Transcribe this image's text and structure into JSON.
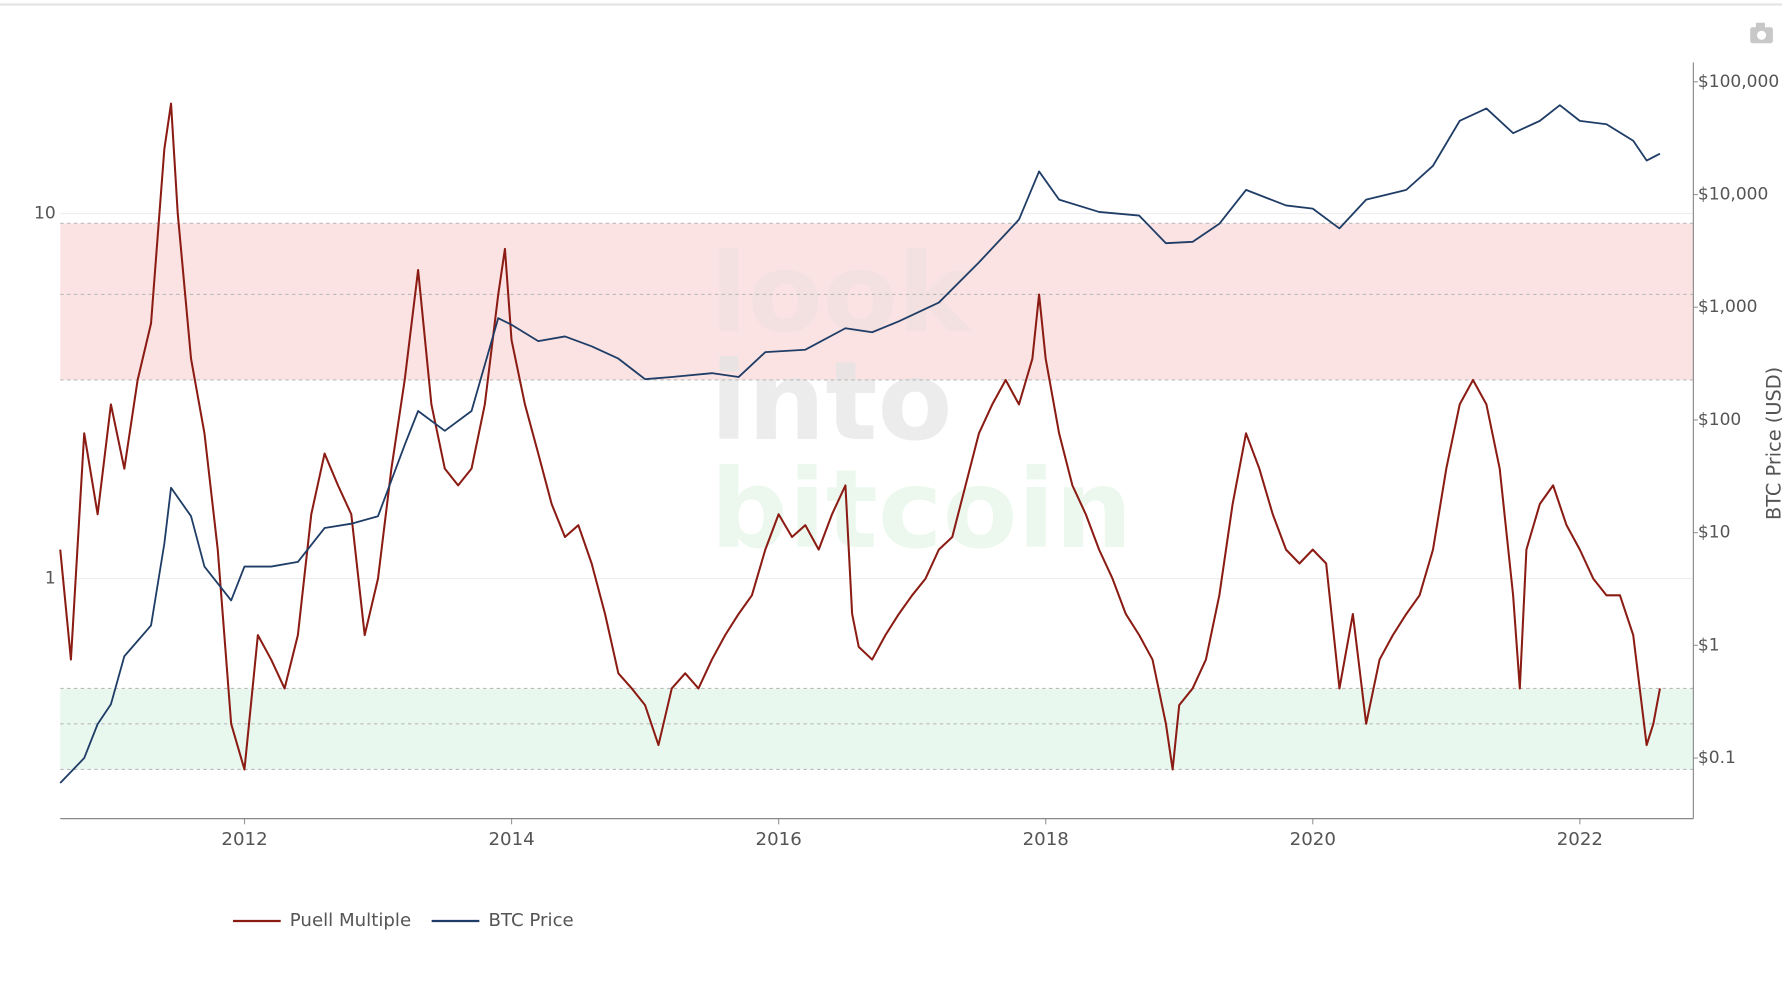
{
  "chart_data": {
    "type": "line",
    "y2label": "BTC Price (USD)",
    "watermark": [
      "look",
      "into",
      "bitcoin"
    ],
    "xlim": [
      2010.62,
      2022.85
    ],
    "xticks": [
      2012,
      2014,
      2016,
      2018,
      2020,
      2022
    ],
    "log_y": true,
    "ylim": [
      0.22,
      25
    ],
    "yticks": [
      1,
      10
    ],
    "log_y2": true,
    "y2lim": [
      0.029,
      132000
    ],
    "y2ticks": [
      {
        "value": 0.1,
        "label": "$0.1"
      },
      {
        "value": 1,
        "label": "$1"
      },
      {
        "value": 10,
        "label": "$10"
      },
      {
        "value": 100,
        "label": "$100"
      },
      {
        "value": 1000,
        "label": "$1,000"
      },
      {
        "value": 10000,
        "label": "$10,000"
      },
      {
        "value": 100000,
        "label": "$100,000"
      }
    ],
    "grid": true,
    "bands": [
      {
        "from": 3.5,
        "to": 9.4,
        "color": "#fbe3e3"
      },
      {
        "from": 0.3,
        "to": 0.5,
        "color": "#e9f8ef"
      }
    ],
    "band_lines": [
      0.3,
      0.4,
      0.5,
      3.5,
      6,
      9.4
    ],
    "legend": "bottom-left",
    "series": [
      {
        "name": "Puell Multiple",
        "color": "#8b1c14",
        "axis": "y",
        "x": [
          2010.62,
          2010.7,
          2010.8,
          2010.9,
          2011.0,
          2011.1,
          2011.2,
          2011.3,
          2011.4,
          2011.45,
          2011.5,
          2011.6,
          2011.7,
          2011.8,
          2011.9,
          2012.0,
          2012.1,
          2012.2,
          2012.3,
          2012.4,
          2012.5,
          2012.6,
          2012.7,
          2012.8,
          2012.9,
          2013.0,
          2013.1,
          2013.2,
          2013.3,
          2013.4,
          2013.5,
          2013.6,
          2013.7,
          2013.8,
          2013.9,
          2013.95,
          2014.0,
          2014.1,
          2014.2,
          2014.3,
          2014.4,
          2014.5,
          2014.6,
          2014.7,
          2014.8,
          2014.9,
          2015.0,
          2015.1,
          2015.2,
          2015.3,
          2015.4,
          2015.5,
          2015.6,
          2015.7,
          2015.8,
          2015.9,
          2016.0,
          2016.1,
          2016.2,
          2016.3,
          2016.4,
          2016.5,
          2016.55,
          2016.6,
          2016.7,
          2016.8,
          2016.9,
          2017.0,
          2017.1,
          2017.2,
          2017.3,
          2017.4,
          2017.5,
          2017.6,
          2017.7,
          2017.8,
          2017.9,
          2017.95,
          2018.0,
          2018.1,
          2018.2,
          2018.3,
          2018.4,
          2018.5,
          2018.6,
          2018.7,
          2018.8,
          2018.9,
          2018.95,
          2019.0,
          2019.1,
          2019.2,
          2019.3,
          2019.4,
          2019.5,
          2019.6,
          2019.7,
          2019.8,
          2019.9,
          2020.0,
          2020.1,
          2020.2,
          2020.3,
          2020.4,
          2020.5,
          2020.6,
          2020.7,
          2020.8,
          2020.9,
          2021.0,
          2021.1,
          2021.2,
          2021.3,
          2021.4,
          2021.5,
          2021.55,
          2021.6,
          2021.7,
          2021.8,
          2021.9,
          2022.0,
          2022.1,
          2022.2,
          2022.3,
          2022.4,
          2022.5,
          2022.55,
          2022.6
        ],
        "values": [
          1.2,
          0.6,
          2.5,
          1.5,
          3.0,
          2.0,
          3.5,
          5,
          15,
          20,
          10,
          4,
          2.5,
          1.2,
          0.4,
          0.3,
          0.7,
          0.6,
          0.5,
          0.7,
          1.5,
          2.2,
          1.8,
          1.5,
          0.7,
          1.0,
          2.0,
          3.5,
          7,
          3.0,
          2.0,
          1.8,
          2.0,
          3.0,
          6,
          8,
          4.5,
          3.0,
          2.2,
          1.6,
          1.3,
          1.4,
          1.1,
          0.8,
          0.55,
          0.5,
          0.45,
          0.35,
          0.5,
          0.55,
          0.5,
          0.6,
          0.7,
          0.8,
          0.9,
          1.2,
          1.5,
          1.3,
          1.4,
          1.2,
          1.5,
          1.8,
          0.8,
          0.65,
          0.6,
          0.7,
          0.8,
          0.9,
          1.0,
          1.2,
          1.3,
          1.8,
          2.5,
          3.0,
          3.5,
          3.0,
          4.0,
          6,
          4.0,
          2.5,
          1.8,
          1.5,
          1.2,
          1.0,
          0.8,
          0.7,
          0.6,
          0.4,
          0.3,
          0.45,
          0.5,
          0.6,
          0.9,
          1.6,
          2.5,
          2.0,
          1.5,
          1.2,
          1.1,
          1.2,
          1.1,
          0.5,
          0.8,
          0.4,
          0.6,
          0.7,
          0.8,
          0.9,
          1.2,
          2.0,
          3.0,
          3.5,
          3.0,
          2.0,
          0.9,
          0.5,
          1.2,
          1.6,
          1.8,
          1.4,
          1.2,
          1.0,
          0.9,
          0.9,
          0.7,
          0.35,
          0.4,
          0.5
        ]
      },
      {
        "name": "BTC Price",
        "color": "#1f3d66",
        "axis": "y2",
        "x": [
          2010.62,
          2010.8,
          2010.9,
          2011.0,
          2011.1,
          2011.3,
          2011.4,
          2011.45,
          2011.6,
          2011.7,
          2011.9,
          2012.0,
          2012.2,
          2012.4,
          2012.6,
          2012.8,
          2013.0,
          2013.2,
          2013.3,
          2013.5,
          2013.7,
          2013.9,
          2014.0,
          2014.2,
          2014.4,
          2014.6,
          2014.8,
          2015.0,
          2015.2,
          2015.5,
          2015.7,
          2015.9,
          2016.2,
          2016.5,
          2016.7,
          2016.9,
          2017.2,
          2017.5,
          2017.8,
          2017.95,
          2018.1,
          2018.4,
          2018.7,
          2018.9,
          2019.1,
          2019.3,
          2019.5,
          2019.8,
          2020.0,
          2020.2,
          2020.4,
          2020.7,
          2020.9,
          2021.1,
          2021.3,
          2021.5,
          2021.7,
          2021.85,
          2022.0,
          2022.2,
          2022.4,
          2022.5,
          2022.6
        ],
        "values": [
          0.06,
          0.1,
          0.2,
          0.3,
          0.8,
          1.5,
          8,
          25,
          14,
          5,
          2.5,
          5,
          5,
          5.5,
          11,
          12,
          14,
          60,
          120,
          80,
          120,
          800,
          700,
          500,
          550,
          450,
          350,
          230,
          240,
          260,
          240,
          400,
          420,
          650,
          600,
          750,
          1100,
          2500,
          6000,
          16000,
          9000,
          7000,
          6500,
          3700,
          3800,
          5500,
          11000,
          8000,
          7500,
          5000,
          9000,
          11000,
          18000,
          45000,
          58000,
          35000,
          45000,
          62000,
          45000,
          42000,
          30000,
          20000,
          23000
        ]
      }
    ]
  }
}
